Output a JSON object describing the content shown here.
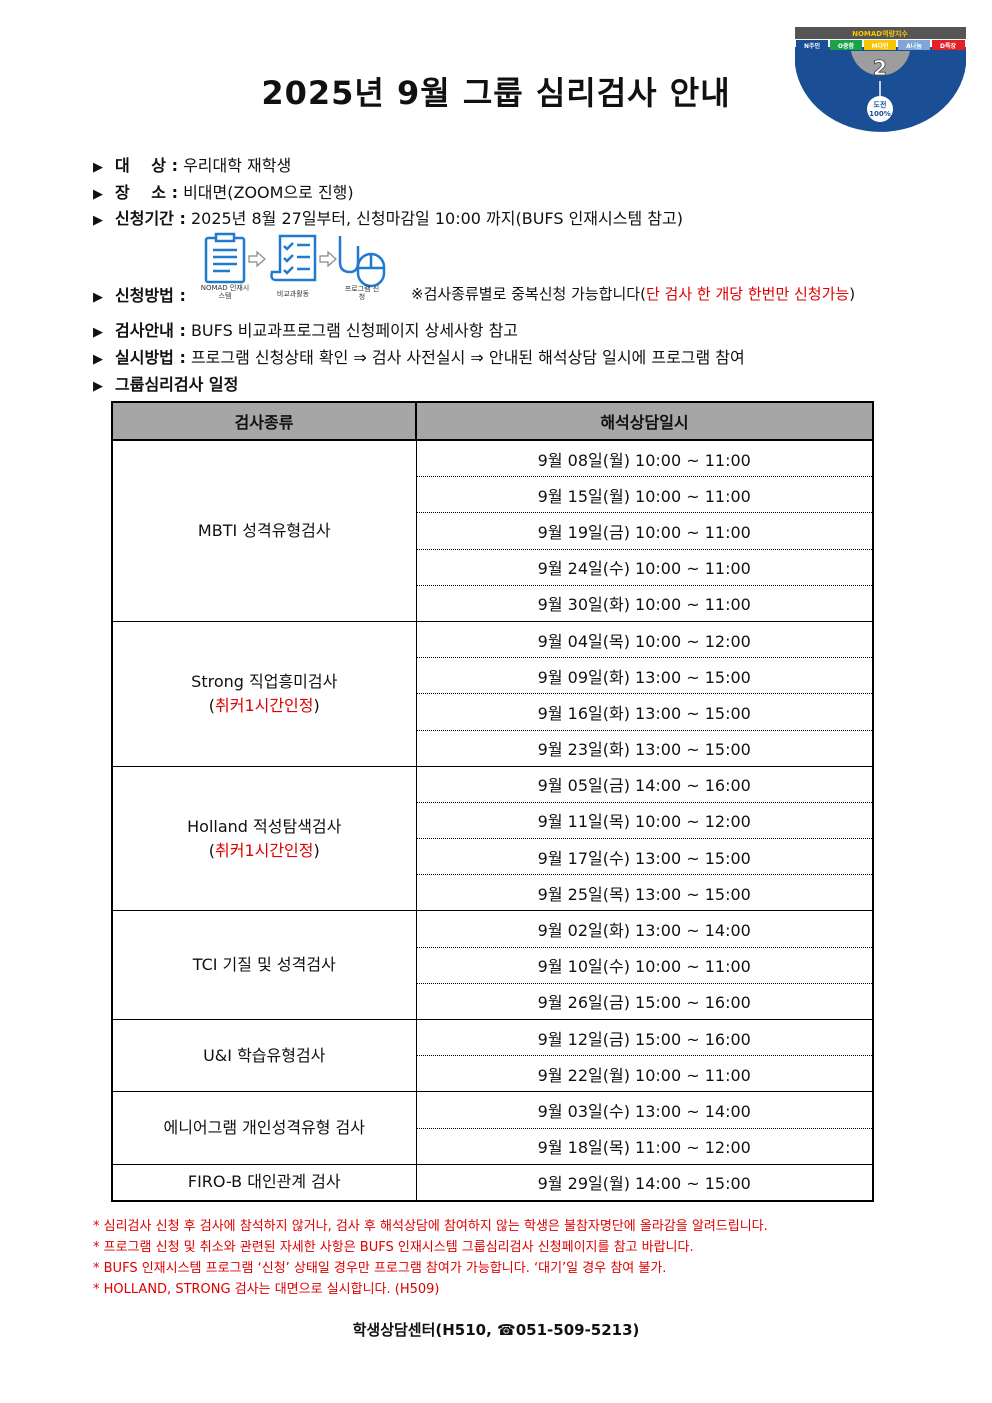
{
  "title": "2025년 9월 그룹 심리검사 안내",
  "logo": {
    "header": "NOMAD역량지수",
    "items": [
      "N주인",
      "O중함",
      "M다인",
      "A나눔",
      "D특장"
    ],
    "number": "2",
    "badge": "도전 100%",
    "colors": {
      "navy": "#1a4f96",
      "green": "#1aa14a",
      "yellow": "#f7c600",
      "lightblue": "#7fa6d6",
      "red": "#e52027",
      "gray": "#9d9d9d"
    }
  },
  "info": [
    {
      "label": "대　 상 :",
      "value": "우리대학 재학생"
    },
    {
      "label": "장　 소 :",
      "value": "비대면(ZOOM으로 진행)"
    },
    {
      "label": "신청기간 :",
      "value": "2025년 8월 27일부터, 신청마감일 10:00 까지(BUFS 인재시스템 참고)"
    },
    {
      "label": "신청방법 :",
      "note": "※검사종류별로 중복신청 가능합니다(",
      "note_red": "단 검사 한 개당 한번만 신청가능",
      "note_end": ")",
      "steps": [
        "NOMAD 인재시스템",
        "비교과활동",
        "프로그램 신청"
      ]
    },
    {
      "label": "검사안내 :",
      "value": "BUFS 비교과프로그램 신청페이지 상세사항 참고"
    },
    {
      "label": "실시방법 :",
      "value": "프로그램 신청상태 확인 ⇒ 검사 사전실시 ⇒ 안내된 해석상담 일시에 프로그램 참여"
    },
    {
      "label": "그룹심리검사 일정",
      "value": ""
    }
  ],
  "table": {
    "headers": [
      "검사종류",
      "해석상담일시"
    ],
    "groups": [
      {
        "name": "MBTI 성격유형검사",
        "sub": "",
        "times": [
          "9월 08일(월) 10:00 ~ 11:00",
          "9월 15일(월) 10:00 ~ 11:00",
          "9월 19일(금) 10:00 ~ 11:00",
          "9월 24일(수) 10:00 ~ 11:00",
          "9월 30일(화) 10:00 ~ 11:00"
        ]
      },
      {
        "name": "Strong 직업흥미검사",
        "sub": "취커1시간인정",
        "times": [
          "9월 04일(목) 10:00 ~ 12:00",
          "9월 09일(화) 13:00 ~ 15:00",
          "9월 16일(화) 13:00 ~ 15:00",
          "9월 23일(화) 13:00 ~ 15:00"
        ]
      },
      {
        "name": "Holland 적성탐색검사",
        "sub": "취커1시간인정",
        "times": [
          "9월 05일(금) 14:00 ~ 16:00",
          "9월 11일(목) 10:00 ~ 12:00",
          "9월 17일(수) 13:00 ~ 15:00",
          "9월 25일(목) 13:00 ~ 15:00"
        ]
      },
      {
        "name": "TCI 기질 및 성격검사",
        "sub": "",
        "times": [
          "9월 02일(화) 13:00 ~ 14:00",
          "9월 10일(수) 10:00 ~ 11:00",
          "9월 26일(금) 15:00 ~ 16:00"
        ]
      },
      {
        "name": "U&I 학습유형검사",
        "sub": "",
        "times": [
          "9월 12일(금) 15:00 ~ 16:00",
          "9월 22일(월) 10:00 ~ 11:00"
        ]
      },
      {
        "name": "에니어그램 개인성격유형 검사",
        "sub": "",
        "times": [
          "9월 03일(수) 13:00 ~ 14:00",
          "9월 18일(목) 11:00 ~ 12:00"
        ]
      },
      {
        "name": "FIRO-B 대인관계 검사",
        "sub": "",
        "times": [
          "9월 29일(월) 14:00 ~ 15:00"
        ]
      }
    ]
  },
  "notes": [
    "* 심리검사 신청 후 검사에 참석하지 않거나, 검사 후 해석상담에 참여하지 않는 학생은 불참자명단에 올라감을 알려드립니다.",
    "* 프로그램 신청 및 취소와 관련된 자세한 사항은 BUFS 인재시스템 그룹심리검사 신청페이지를 참고 바랍니다.",
    "* BUFS 인재시스템 프로그램 ‘신청’ 상태일 경우만 프로그램 참여가 가능합니다. ‘대기’일 경우 참여 불가.",
    "* HOLLAND, STRONG 검사는 대면으로 실시합니다. (H509)"
  ],
  "footer": "학생상담센터(H510, ☎051-509-5213)"
}
